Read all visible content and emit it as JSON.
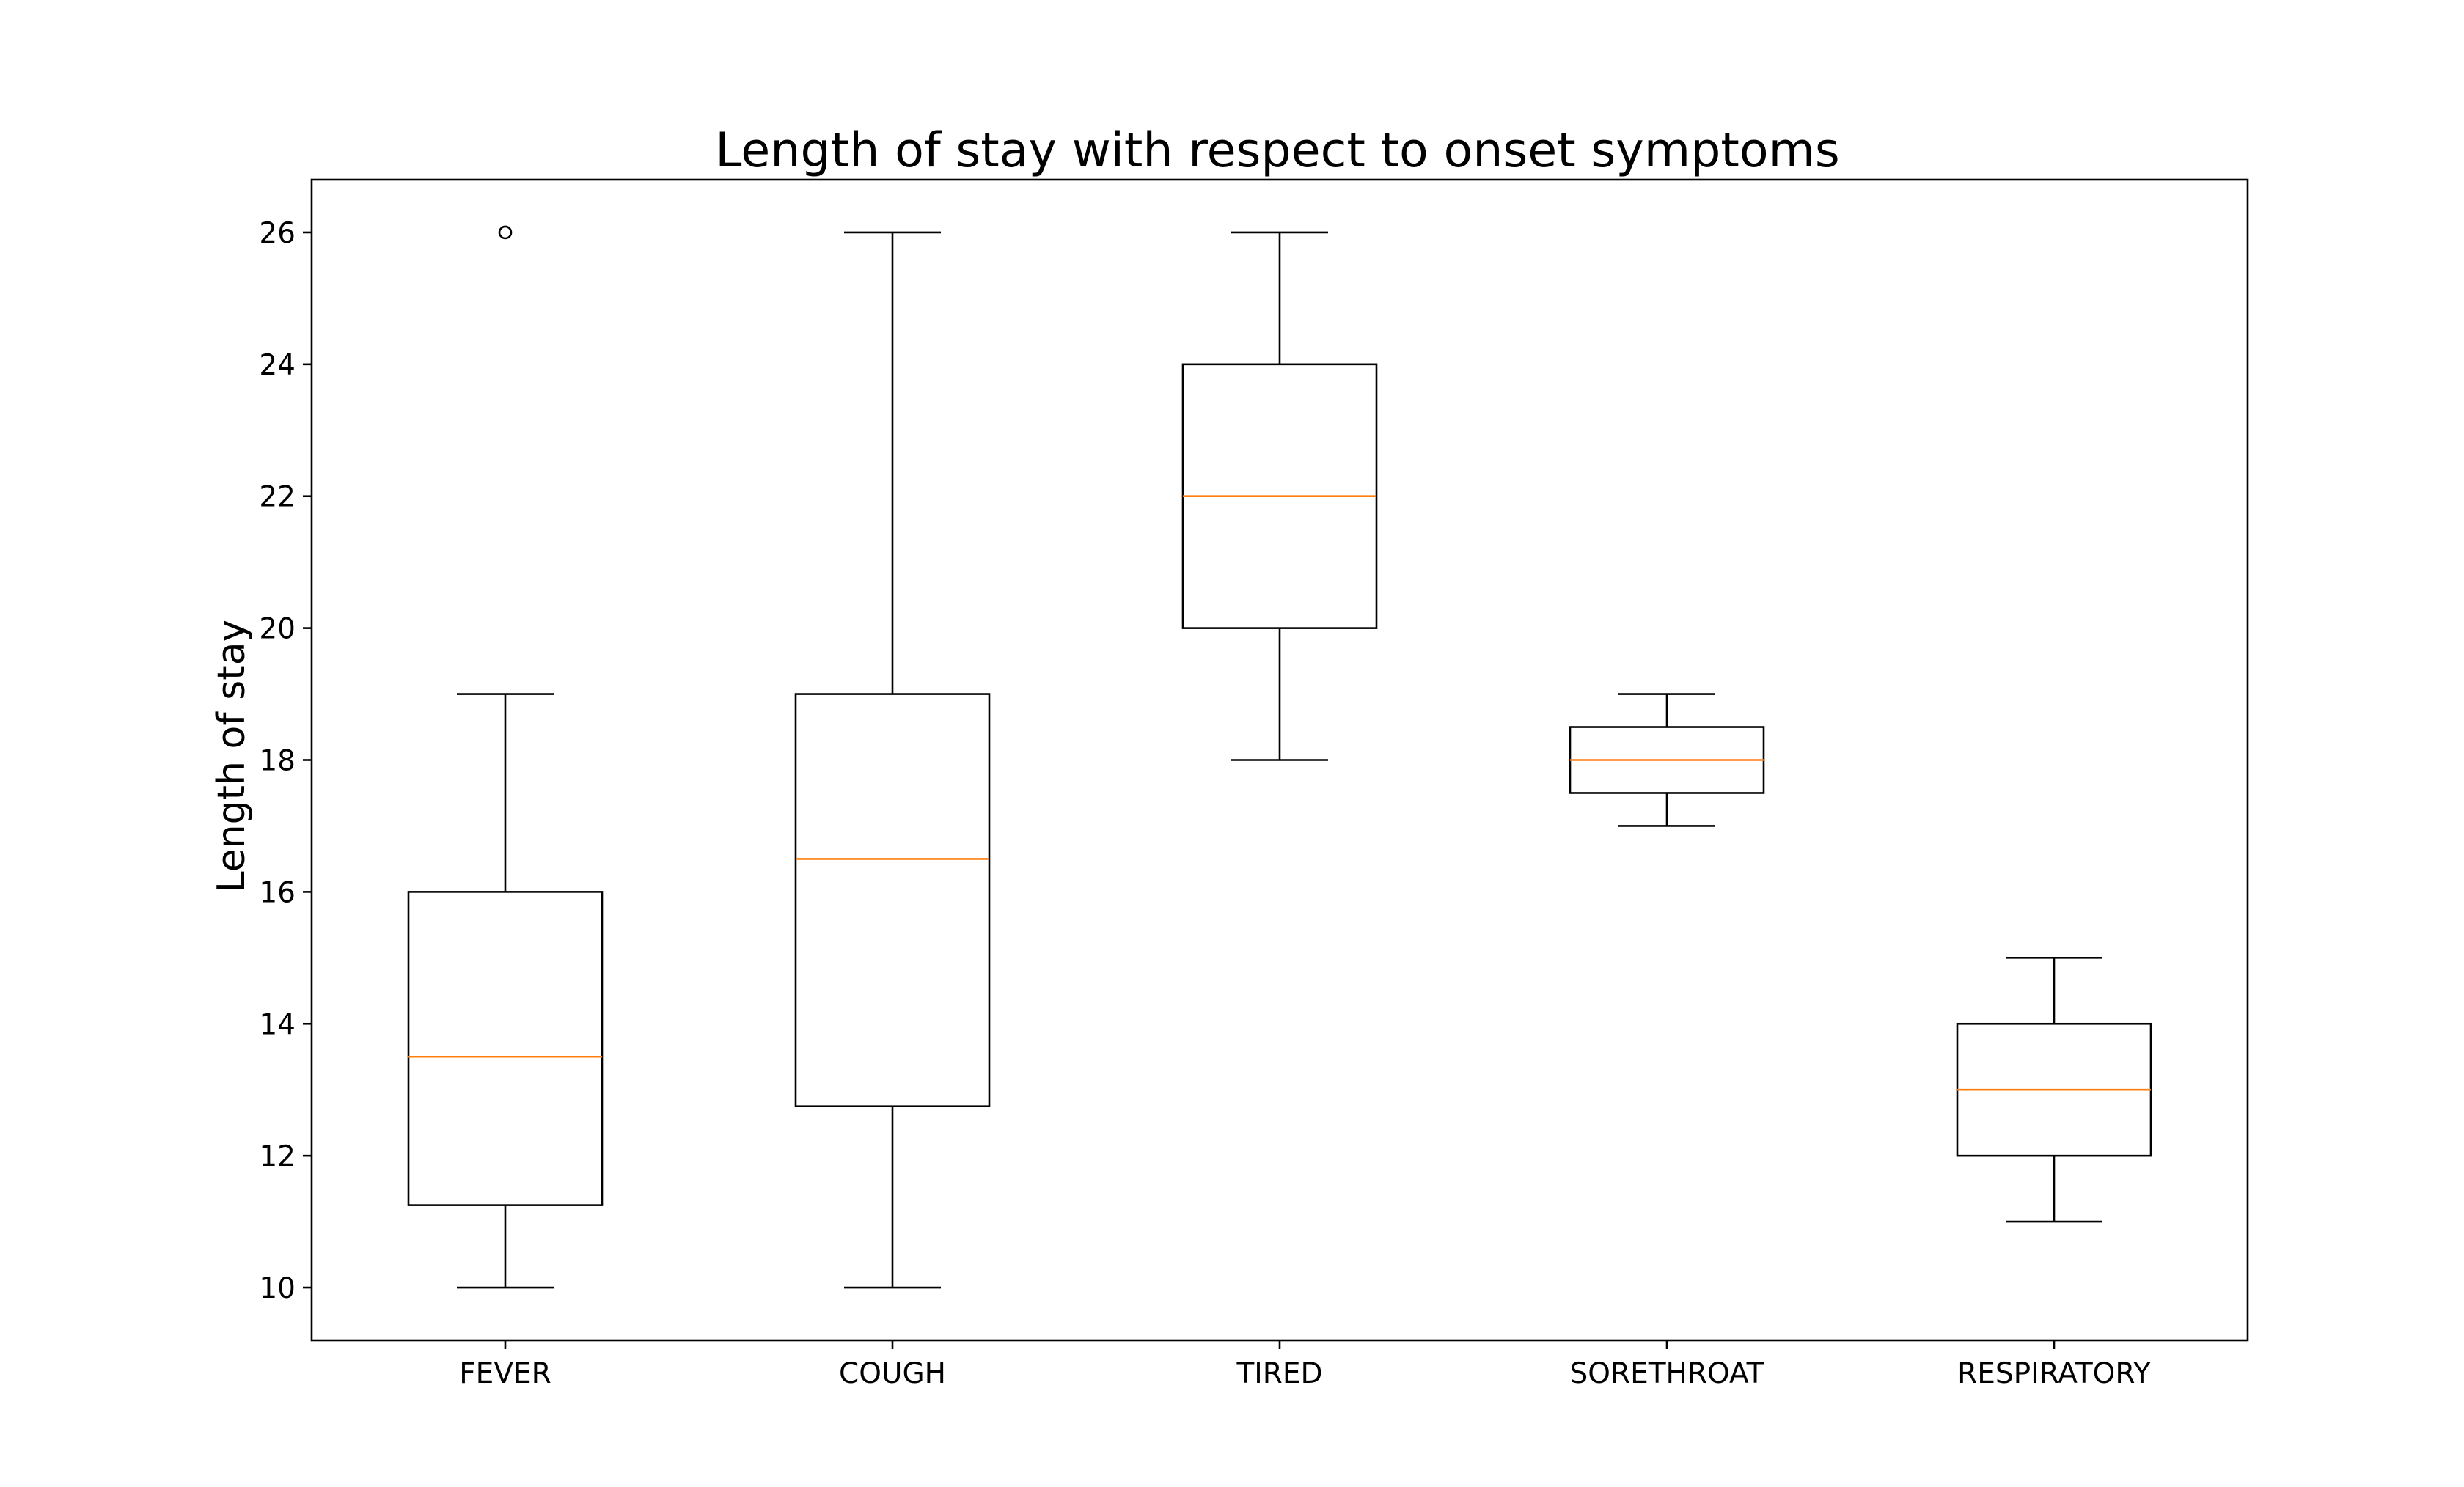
{
  "chart_data": {
    "type": "boxplot",
    "title": "Length of stay with respect to onset symptoms",
    "xlabel": "",
    "ylabel": "Length of stay",
    "ylim": [
      9.2,
      26.8
    ],
    "yticks": [
      10,
      12,
      14,
      16,
      18,
      20,
      22,
      24,
      26
    ],
    "grid": false,
    "categories": [
      "FEVER",
      "COUGH",
      "TIRED",
      "SORETHROAT",
      "RESPIRATORY"
    ],
    "boxes": [
      {
        "category": "FEVER",
        "whisker_low": 10,
        "q1": 11.25,
        "median": 13.5,
        "q3": 16,
        "whisker_high": 19,
        "outliers": [
          26
        ]
      },
      {
        "category": "COUGH",
        "whisker_low": 10,
        "q1": 12.75,
        "median": 16.5,
        "q3": 19,
        "whisker_high": 26,
        "outliers": []
      },
      {
        "category": "TIRED",
        "whisker_low": 18,
        "q1": 20,
        "median": 22,
        "q3": 24,
        "whisker_high": 26,
        "outliers": []
      },
      {
        "category": "SORETHROAT",
        "whisker_low": 17,
        "q1": 17.5,
        "median": 18,
        "q3": 18.5,
        "whisker_high": 19,
        "outliers": []
      },
      {
        "category": "RESPIRATORY",
        "whisker_low": 11,
        "q1": 12,
        "median": 13,
        "q3": 14,
        "whisker_high": 15,
        "outliers": []
      }
    ],
    "colors": {
      "box": "#000000",
      "median": "#ff7f0e",
      "axes": "#000000",
      "background": "#ffffff"
    }
  }
}
